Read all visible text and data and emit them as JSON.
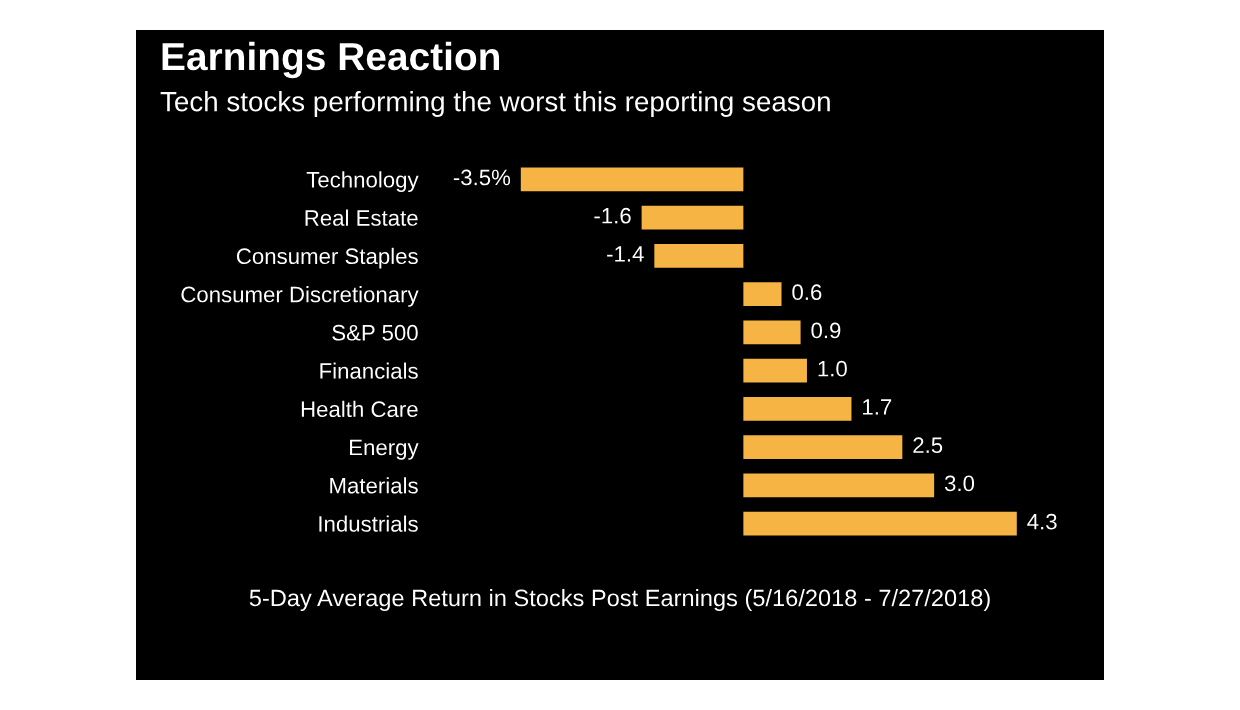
{
  "chart_data": {
    "type": "bar",
    "orientation": "horizontal",
    "title": "Earnings Reaction",
    "subtitle": "Tech stocks performing the worst this reporting season",
    "categories": [
      "Technology",
      "Real Estate",
      "Consumer Staples",
      "Consumer Discretionary",
      "S&P 500",
      "Financials",
      "Health Care",
      "Energy",
      "Materials",
      "Industrials"
    ],
    "values": [
      -3.5,
      -1.6,
      -1.4,
      0.6,
      0.9,
      1.0,
      1.7,
      2.5,
      3.0,
      4.3
    ],
    "value_labels": [
      "-3.5%",
      "-1.6",
      "-1.4",
      "0.6",
      "0.9",
      "1.0",
      "1.7",
      "2.5",
      "3.0",
      "4.3"
    ],
    "color": "#f6b444",
    "xlabel": "5-Day Average Return in Stocks Post Earnings (5/16/2018 - 7/27/2018)"
  }
}
